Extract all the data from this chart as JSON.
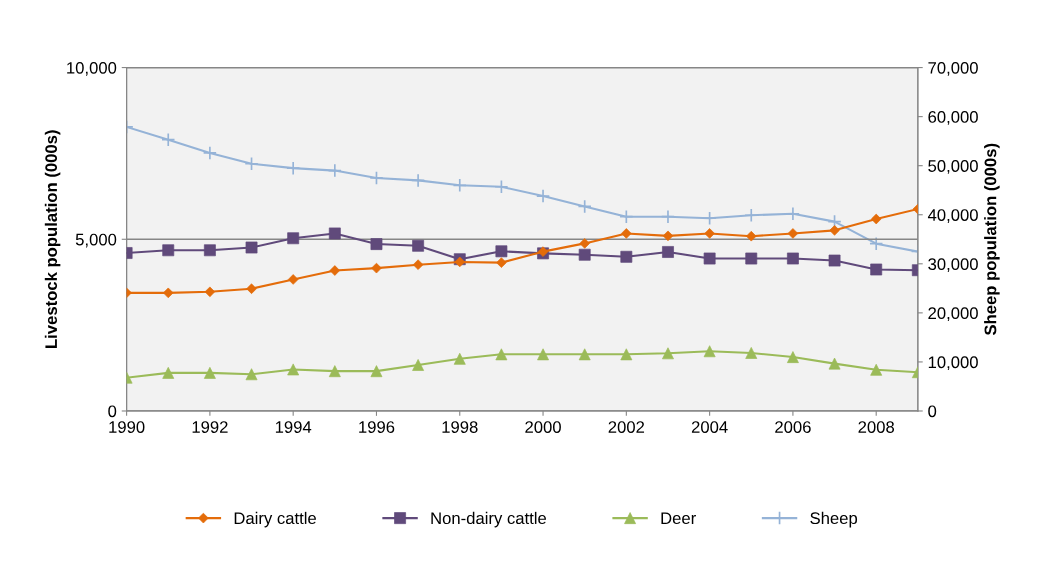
{
  "chart_data": {
    "type": "line",
    "ylabel": "Livestock population (000s)",
    "y2label": "Sheep population (000s)",
    "x": [
      1990,
      1991,
      1992,
      1993,
      1994,
      1995,
      1996,
      1997,
      1998,
      1999,
      2000,
      2001,
      2002,
      2003,
      2004,
      2005,
      2006,
      2007,
      2008,
      2009
    ],
    "xlim": [
      1990,
      2009
    ],
    "xticks": [
      1990,
      1992,
      1994,
      1996,
      1998,
      2000,
      2002,
      2004,
      2006,
      2008
    ],
    "ylim": [
      0,
      10000
    ],
    "yticks": [
      {
        "value": 0,
        "label": "0"
      },
      {
        "value": 5000,
        "label": "5,000"
      },
      {
        "value": 10000,
        "label": "10,000"
      }
    ],
    "y2lim": [
      0,
      70000
    ],
    "y2ticks": [
      {
        "value": 0,
        "label": "0"
      },
      {
        "value": 10000,
        "label": "10,000"
      },
      {
        "value": 20000,
        "label": "20,000"
      },
      {
        "value": 30000,
        "label": "30,000"
      },
      {
        "value": 40000,
        "label": "40,000"
      },
      {
        "value": 50000,
        "label": "50,000"
      },
      {
        "value": 60000,
        "label": "60,000"
      },
      {
        "value": 70000,
        "label": "70,000"
      }
    ],
    "grid": "y",
    "legend": "bottom",
    "series": [
      {
        "name": "Dairy cattle",
        "color": "#e46c0a",
        "marker": "diamond",
        "values": [
          3440,
          3440,
          3470,
          3560,
          3830,
          4090,
          4160,
          4260,
          4340,
          4320,
          4640,
          4880,
          5170,
          5100,
          5170,
          5090,
          5170,
          5260,
          5590,
          5880
        ]
      },
      {
        "name": "Non-dairy cattle",
        "color": "#604a7b",
        "marker": "square",
        "values": [
          4600,
          4680,
          4680,
          4760,
          5030,
          5170,
          4860,
          4810,
          4420,
          4650,
          4590,
          4550,
          4490,
          4630,
          4440,
          4440,
          4440,
          4380,
          4120,
          4100
        ]
      },
      {
        "name": "Deer",
        "color": "#9bbb59",
        "marker": "triangle",
        "values": [
          970,
          1110,
          1110,
          1070,
          1210,
          1160,
          1160,
          1340,
          1520,
          1650,
          1650,
          1650,
          1650,
          1680,
          1740,
          1690,
          1570,
          1380,
          1200,
          1130
        ]
      },
      {
        "name": "Sheep",
        "color": "#95b3d7",
        "marker": "cross",
        "axis": "y2",
        "values": [
          57900,
          55300,
          52600,
          50400,
          49500,
          49000,
          47500,
          47000,
          46000,
          45700,
          43800,
          41700,
          39600,
          39600,
          39300,
          39900,
          40200,
          38600,
          34100,
          32500
        ]
      }
    ]
  }
}
